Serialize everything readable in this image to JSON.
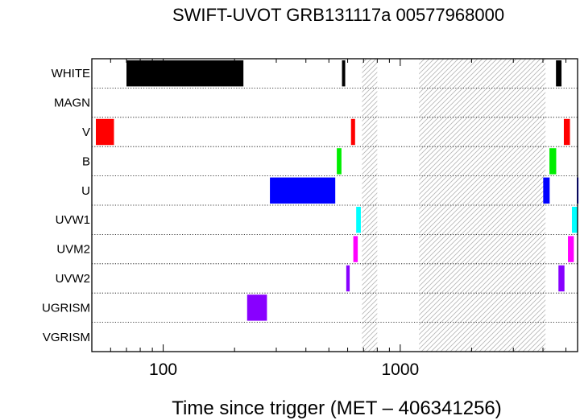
{
  "chart_data": {
    "type": "timeline",
    "title": "SWIFT-UVOT GRB131117a 00577968000",
    "xlabel": "Time since trigger (MET – 406341256)",
    "ylabel": "",
    "x_scale": "log",
    "xlim": [
      50,
      5600
    ],
    "x_major_ticks": [
      100,
      1000
    ],
    "x_tick_labels": [
      "100",
      "1000"
    ],
    "rows": [
      "WHITE",
      "MAGN",
      "V",
      "B",
      "U",
      "UVW1",
      "UVM2",
      "UVW2",
      "UGRISM",
      "VGRISM"
    ],
    "filter_colors": {
      "WHITE": "#000000",
      "V": "#ff0000",
      "B": "#00ee00",
      "U": "#0000ff",
      "UVW1": "#00ffff",
      "UVM2": "#ff00ff",
      "UVW2": "#8800ff",
      "UGRISM": "#8800ff"
    },
    "gaps": [
      {
        "start": 690,
        "end": 800
      },
      {
        "start": 1200,
        "end": 4100
      }
    ],
    "exposures": [
      {
        "filter": "WHITE",
        "start": 70,
        "end": 218
      },
      {
        "filter": "WHITE",
        "start": 568,
        "end": 586
      },
      {
        "filter": "WHITE",
        "start": 4540,
        "end": 4790
      },
      {
        "filter": "V",
        "start": 52,
        "end": 62
      },
      {
        "filter": "V",
        "start": 620,
        "end": 645
      },
      {
        "filter": "V",
        "start": 4900,
        "end": 5200
      },
      {
        "filter": "B",
        "start": 540,
        "end": 565
      },
      {
        "filter": "B",
        "start": 4260,
        "end": 4550
      },
      {
        "filter": "U",
        "start": 282,
        "end": 532
      },
      {
        "filter": "U",
        "start": 4010,
        "end": 4270
      },
      {
        "filter": "U",
        "start": 5560,
        "end": 5650
      },
      {
        "filter": "UVW1",
        "start": 652,
        "end": 682
      },
      {
        "filter": "UVW1",
        "start": 5300,
        "end": 5600
      },
      {
        "filter": "UVM2",
        "start": 634,
        "end": 662
      },
      {
        "filter": "UVM2",
        "start": 5100,
        "end": 5400
      },
      {
        "filter": "UVW2",
        "start": 592,
        "end": 612
      },
      {
        "filter": "UVW2",
        "start": 4650,
        "end": 4930
      },
      {
        "filter": "UGRISM",
        "start": 226,
        "end": 274
      }
    ],
    "gridlines": "dotted row separators"
  }
}
